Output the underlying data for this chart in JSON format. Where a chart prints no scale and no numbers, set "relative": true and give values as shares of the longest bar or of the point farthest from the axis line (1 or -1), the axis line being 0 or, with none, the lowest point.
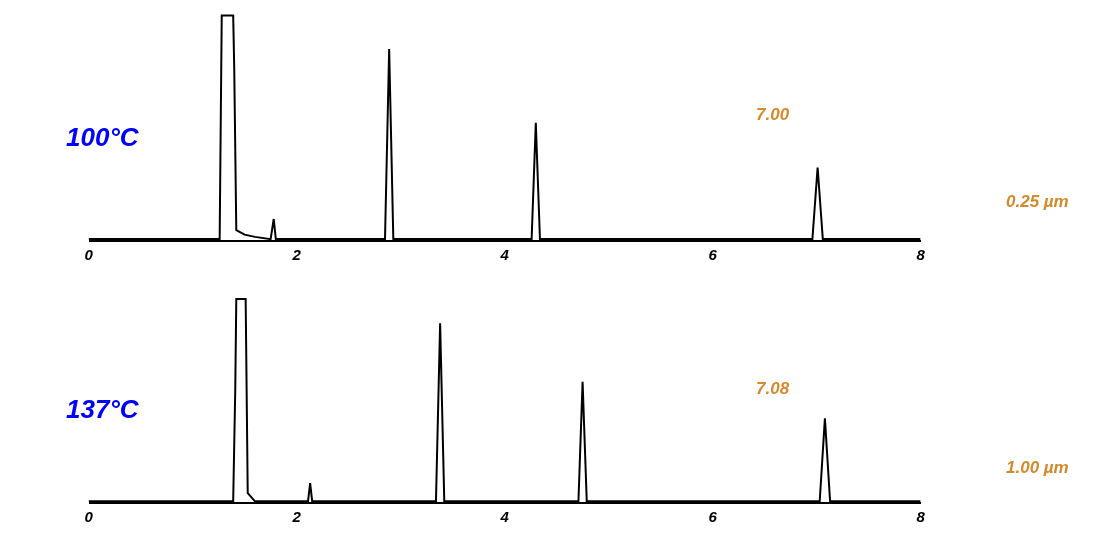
{
  "chart_data": [
    {
      "type": "line",
      "relative": true,
      "x": [
        0,
        1.26,
        1.28,
        1.39,
        1.4,
        1.42,
        1.5,
        1.6,
        1.75,
        1.78,
        1.8,
        2.85,
        2.89,
        2.93,
        4.26,
        4.3,
        4.34,
        6.96,
        7.01,
        7.06,
        8
      ],
      "series": [
        {
          "color": "#000000",
          "values": [
            0,
            0,
            1,
            1,
            0.77,
            0.04,
            0.02,
            0.01,
            0,
            0.09,
            0,
            0,
            0.85,
            0,
            0,
            0.52,
            0,
            0,
            0.32,
            0,
            0
          ]
        }
      ],
      "xlim": [
        0,
        8
      ],
      "xticks": [
        0,
        2,
        4,
        6,
        8
      ],
      "tick_labels": "x",
      "marker": "none",
      "line_style": "solid",
      "annotations": [
        "100°C",
        "7.00",
        "0.25 µm"
      ]
    },
    {
      "type": "line",
      "relative": true,
      "x": [
        0,
        1.39,
        1.41,
        1.42,
        1.51,
        1.53,
        1.6,
        2.11,
        2.13,
        2.15,
        3.34,
        3.38,
        3.42,
        4.71,
        4.75,
        4.79,
        7.03,
        7.08,
        7.13,
        8
      ],
      "series": [
        {
          "color": "#000000",
          "values": [
            0,
            0,
            0.55,
            1,
            1,
            0.04,
            0,
            0,
            0.09,
            0,
            0,
            0.88,
            0,
            0,
            0.59,
            0,
            0,
            0.41,
            0,
            0
          ]
        }
      ],
      "xlim": [
        0,
        8
      ],
      "xticks": [
        0,
        2,
        4,
        6,
        8
      ],
      "tick_labels": "x",
      "marker": "none",
      "line_style": "solid",
      "annotations": [
        "137°C",
        "7.08",
        "1.00 µm"
      ]
    }
  ]
}
